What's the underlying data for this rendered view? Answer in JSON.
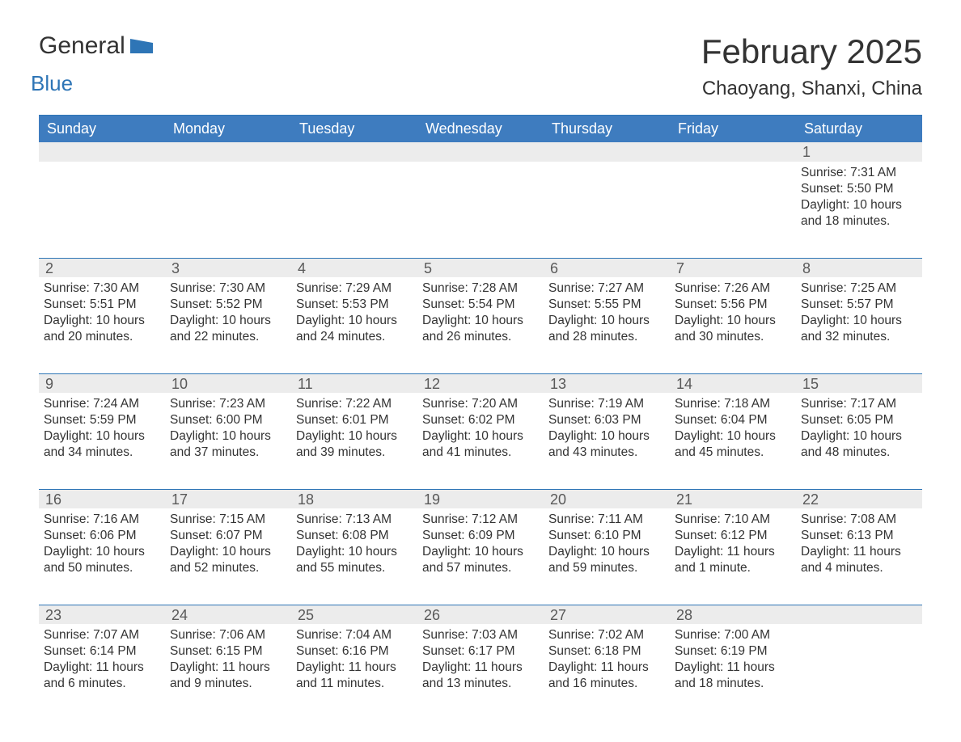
{
  "logo": {
    "general": "General",
    "blue": "Blue",
    "icon_color": "#2e75b6"
  },
  "header": {
    "month_title": "February 2025",
    "location": "Chaoyang, Shanxi, China"
  },
  "colors": {
    "header_bg": "#3e7cbf",
    "accent_border": "#2e75b6",
    "day_bar_bg": "#ececec",
    "text_main": "#333333",
    "text_daynum": "#595959",
    "background": "#ffffff"
  },
  "weekdays": [
    "Sunday",
    "Monday",
    "Tuesday",
    "Wednesday",
    "Thursday",
    "Friday",
    "Saturday"
  ],
  "days": [
    {
      "day": "",
      "sunrise": "",
      "sunset": "",
      "daylight": ""
    },
    {
      "day": "",
      "sunrise": "",
      "sunset": "",
      "daylight": ""
    },
    {
      "day": "",
      "sunrise": "",
      "sunset": "",
      "daylight": ""
    },
    {
      "day": "",
      "sunrise": "",
      "sunset": "",
      "daylight": ""
    },
    {
      "day": "",
      "sunrise": "",
      "sunset": "",
      "daylight": ""
    },
    {
      "day": "",
      "sunrise": "",
      "sunset": "",
      "daylight": ""
    },
    {
      "day": "1",
      "sunrise": "Sunrise: 7:31 AM",
      "sunset": "Sunset: 5:50 PM",
      "daylight": "Daylight: 10 hours and 18 minutes."
    },
    {
      "day": "2",
      "sunrise": "Sunrise: 7:30 AM",
      "sunset": "Sunset: 5:51 PM",
      "daylight": "Daylight: 10 hours and 20 minutes."
    },
    {
      "day": "3",
      "sunrise": "Sunrise: 7:30 AM",
      "sunset": "Sunset: 5:52 PM",
      "daylight": "Daylight: 10 hours and 22 minutes."
    },
    {
      "day": "4",
      "sunrise": "Sunrise: 7:29 AM",
      "sunset": "Sunset: 5:53 PM",
      "daylight": "Daylight: 10 hours and 24 minutes."
    },
    {
      "day": "5",
      "sunrise": "Sunrise: 7:28 AM",
      "sunset": "Sunset: 5:54 PM",
      "daylight": "Daylight: 10 hours and 26 minutes."
    },
    {
      "day": "6",
      "sunrise": "Sunrise: 7:27 AM",
      "sunset": "Sunset: 5:55 PM",
      "daylight": "Daylight: 10 hours and 28 minutes."
    },
    {
      "day": "7",
      "sunrise": "Sunrise: 7:26 AM",
      "sunset": "Sunset: 5:56 PM",
      "daylight": "Daylight: 10 hours and 30 minutes."
    },
    {
      "day": "8",
      "sunrise": "Sunrise: 7:25 AM",
      "sunset": "Sunset: 5:57 PM",
      "daylight": "Daylight: 10 hours and 32 minutes."
    },
    {
      "day": "9",
      "sunrise": "Sunrise: 7:24 AM",
      "sunset": "Sunset: 5:59 PM",
      "daylight": "Daylight: 10 hours and 34 minutes."
    },
    {
      "day": "10",
      "sunrise": "Sunrise: 7:23 AM",
      "sunset": "Sunset: 6:00 PM",
      "daylight": "Daylight: 10 hours and 37 minutes."
    },
    {
      "day": "11",
      "sunrise": "Sunrise: 7:22 AM",
      "sunset": "Sunset: 6:01 PM",
      "daylight": "Daylight: 10 hours and 39 minutes."
    },
    {
      "day": "12",
      "sunrise": "Sunrise: 7:20 AM",
      "sunset": "Sunset: 6:02 PM",
      "daylight": "Daylight: 10 hours and 41 minutes."
    },
    {
      "day": "13",
      "sunrise": "Sunrise: 7:19 AM",
      "sunset": "Sunset: 6:03 PM",
      "daylight": "Daylight: 10 hours and 43 minutes."
    },
    {
      "day": "14",
      "sunrise": "Sunrise: 7:18 AM",
      "sunset": "Sunset: 6:04 PM",
      "daylight": "Daylight: 10 hours and 45 minutes."
    },
    {
      "day": "15",
      "sunrise": "Sunrise: 7:17 AM",
      "sunset": "Sunset: 6:05 PM",
      "daylight": "Daylight: 10 hours and 48 minutes."
    },
    {
      "day": "16",
      "sunrise": "Sunrise: 7:16 AM",
      "sunset": "Sunset: 6:06 PM",
      "daylight": "Daylight: 10 hours and 50 minutes."
    },
    {
      "day": "17",
      "sunrise": "Sunrise: 7:15 AM",
      "sunset": "Sunset: 6:07 PM",
      "daylight": "Daylight: 10 hours and 52 minutes."
    },
    {
      "day": "18",
      "sunrise": "Sunrise: 7:13 AM",
      "sunset": "Sunset: 6:08 PM",
      "daylight": "Daylight: 10 hours and 55 minutes."
    },
    {
      "day": "19",
      "sunrise": "Sunrise: 7:12 AM",
      "sunset": "Sunset: 6:09 PM",
      "daylight": "Daylight: 10 hours and 57 minutes."
    },
    {
      "day": "20",
      "sunrise": "Sunrise: 7:11 AM",
      "sunset": "Sunset: 6:10 PM",
      "daylight": "Daylight: 10 hours and 59 minutes."
    },
    {
      "day": "21",
      "sunrise": "Sunrise: 7:10 AM",
      "sunset": "Sunset: 6:12 PM",
      "daylight": "Daylight: 11 hours and 1 minute."
    },
    {
      "day": "22",
      "sunrise": "Sunrise: 7:08 AM",
      "sunset": "Sunset: 6:13 PM",
      "daylight": "Daylight: 11 hours and 4 minutes."
    },
    {
      "day": "23",
      "sunrise": "Sunrise: 7:07 AM",
      "sunset": "Sunset: 6:14 PM",
      "daylight": "Daylight: 11 hours and 6 minutes."
    },
    {
      "day": "24",
      "sunrise": "Sunrise: 7:06 AM",
      "sunset": "Sunset: 6:15 PM",
      "daylight": "Daylight: 11 hours and 9 minutes."
    },
    {
      "day": "25",
      "sunrise": "Sunrise: 7:04 AM",
      "sunset": "Sunset: 6:16 PM",
      "daylight": "Daylight: 11 hours and 11 minutes."
    },
    {
      "day": "26",
      "sunrise": "Sunrise: 7:03 AM",
      "sunset": "Sunset: 6:17 PM",
      "daylight": "Daylight: 11 hours and 13 minutes."
    },
    {
      "day": "27",
      "sunrise": "Sunrise: 7:02 AM",
      "sunset": "Sunset: 6:18 PM",
      "daylight": "Daylight: 11 hours and 16 minutes."
    },
    {
      "day": "28",
      "sunrise": "Sunrise: 7:00 AM",
      "sunset": "Sunset: 6:19 PM",
      "daylight": "Daylight: 11 hours and 18 minutes."
    },
    {
      "day": "",
      "sunrise": "",
      "sunset": "",
      "daylight": ""
    }
  ]
}
